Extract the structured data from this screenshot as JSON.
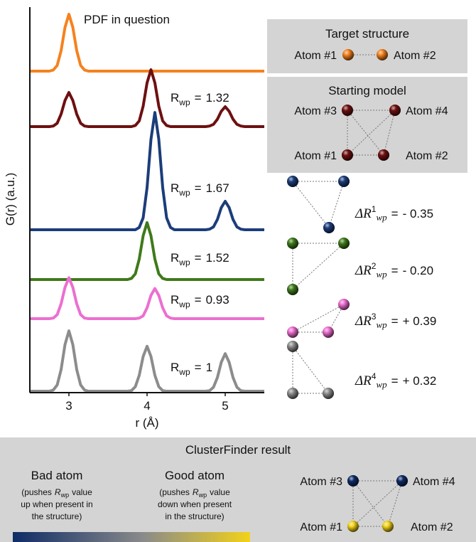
{
  "chart_data": {
    "type": "line",
    "x_label": "r (Å)",
    "y_label": "G(r) (a.u.)",
    "xlim": [
      2.5,
      5.5
    ],
    "xticks": [
      3,
      4,
      5
    ],
    "x": [
      2.5,
      2.55,
      2.6,
      2.65,
      2.7,
      2.75,
      2.8,
      2.85,
      2.9,
      2.95,
      3,
      3.05,
      3.1,
      3.15,
      3.2,
      3.25,
      3.3,
      3.35,
      3.4,
      3.45,
      3.5,
      3.55,
      3.6,
      3.65,
      3.7,
      3.75,
      3.8,
      3.85,
      3.9,
      3.95,
      4,
      4.05,
      4.1,
      4.15,
      4.2,
      4.25,
      4.3,
      4.35,
      4.4,
      4.45,
      4.5,
      4.55,
      4.6,
      4.65,
      4.7,
      4.75,
      4.8,
      4.85,
      4.9,
      4.95,
      5,
      5.05,
      5.1,
      5.15,
      5.2,
      5.25,
      5.3,
      5.35,
      5.4,
      5.45,
      5.5
    ],
    "rwp_label": {
      "symbol": "R",
      "subscript": "wp",
      "equals": "="
    },
    "series": [
      {
        "name": "PDF in question",
        "color": "#f5821f",
        "values": [
          0,
          0,
          0,
          0,
          0,
          0,
          0.02,
          0.1,
          0.36,
          0.77,
          1,
          0.77,
          0.36,
          0.1,
          0.02,
          0,
          0,
          0,
          0,
          0,
          0,
          0,
          0,
          0,
          0,
          0,
          0,
          0,
          0,
          0,
          0,
          0,
          0,
          0,
          0,
          0,
          0,
          0,
          0,
          0,
          0,
          0,
          0,
          0,
          0,
          0,
          0,
          0,
          0,
          0,
          0,
          0,
          0,
          0,
          0,
          0,
          0,
          0,
          0,
          0,
          0
        ]
      },
      {
        "color": "#6e1010",
        "rwp": 1.32,
        "values": [
          0,
          0,
          0,
          0,
          0,
          0,
          0.01,
          0.06,
          0.22,
          0.46,
          0.6,
          0.46,
          0.22,
          0.06,
          0.01,
          0,
          0,
          0,
          0,
          0,
          0,
          0,
          0,
          0,
          0,
          0,
          0,
          0.02,
          0.1,
          0.36,
          0.77,
          1,
          0.77,
          0.36,
          0.1,
          0.02,
          0,
          0,
          0,
          0,
          0,
          0,
          0,
          0,
          0,
          0,
          0.01,
          0.04,
          0.13,
          0.27,
          0.35,
          0.27,
          0.13,
          0.04,
          0.01,
          0,
          0,
          0,
          0,
          0,
          0
        ]
      },
      {
        "color": "#1c3d7a",
        "rwp": 1.67,
        "values": [
          0,
          0,
          0,
          0,
          0,
          0,
          0,
          0,
          0,
          0,
          0,
          0,
          0,
          0,
          0,
          0,
          0,
          0,
          0,
          0,
          0,
          0,
          0,
          0,
          0,
          0,
          0,
          0,
          0.04,
          0.21,
          0.74,
          1.59,
          2.06,
          1.59,
          0.74,
          0.21,
          0.04,
          0,
          0,
          0,
          0,
          0,
          0,
          0,
          0,
          0,
          0.01,
          0.05,
          0.18,
          0.39,
          0.5,
          0.39,
          0.18,
          0.05,
          0.01,
          0,
          0,
          0,
          0,
          0,
          0
        ]
      },
      {
        "color": "#3f7a1a",
        "rwp": 1.52,
        "values": [
          0,
          0,
          0,
          0,
          0,
          0,
          0,
          0,
          0,
          0,
          0,
          0,
          0,
          0,
          0,
          0,
          0,
          0,
          0,
          0,
          0,
          0,
          0,
          0,
          0,
          0,
          0.02,
          0.1,
          0.36,
          0.77,
          1,
          0.77,
          0.36,
          0.1,
          0.02,
          0,
          0,
          0,
          0,
          0,
          0,
          0,
          0,
          0,
          0,
          0,
          0,
          0,
          0,
          0,
          0,
          0,
          0,
          0,
          0,
          0,
          0,
          0,
          0,
          0,
          0
        ]
      },
      {
        "color": "#ec6fd0",
        "rwp": 0.93,
        "values": [
          0,
          0,
          0,
          0,
          0,
          0,
          0.01,
          0.07,
          0.26,
          0.55,
          0.72,
          0.55,
          0.26,
          0.07,
          0.01,
          0,
          0,
          0,
          0,
          0,
          0,
          0,
          0,
          0,
          0,
          0,
          0,
          0,
          0.01,
          0.05,
          0.19,
          0.41,
          0.53,
          0.41,
          0.19,
          0.05,
          0.01,
          0,
          0,
          0,
          0,
          0,
          0,
          0,
          0,
          0,
          0,
          0,
          0,
          0,
          0,
          0,
          0,
          0,
          0,
          0,
          0,
          0,
          0,
          0,
          0
        ]
      },
      {
        "color": "#8c8c8c",
        "rwp": 1.0,
        "values": [
          0,
          0,
          0,
          0,
          0,
          0,
          0.02,
          0.11,
          0.38,
          0.82,
          1.06,
          0.82,
          0.38,
          0.11,
          0.02,
          0,
          0,
          0,
          0,
          0,
          0,
          0,
          0,
          0,
          0,
          0,
          0.01,
          0.08,
          0.28,
          0.61,
          0.79,
          0.61,
          0.28,
          0.08,
          0.01,
          0,
          0,
          0,
          0,
          0,
          0,
          0,
          0,
          0,
          0,
          0,
          0.01,
          0.07,
          0.24,
          0.51,
          0.66,
          0.51,
          0.24,
          0.07,
          0.01,
          0,
          0,
          0,
          0,
          0,
          0
        ]
      }
    ]
  },
  "target": {
    "title": "Target structure",
    "atoms": [
      "Atom #1",
      "Atom #2"
    ]
  },
  "start": {
    "title": "Starting model",
    "atoms": [
      "Atom #3",
      "Atom #4",
      "Atom #1",
      "Atom #2"
    ]
  },
  "deltas": {
    "symbol": "ΔR",
    "subscript": "wp",
    "equals": "=",
    "items": [
      {
        "superscript": "1",
        "value": -0.35,
        "value_label": "- 0.35"
      },
      {
        "superscript": "2",
        "value": -0.2,
        "value_label": "- 0.20"
      },
      {
        "superscript": "3",
        "value": 0.39,
        "value_label": "+ 0.39"
      },
      {
        "superscript": "4",
        "value": 0.32,
        "value_label": "+ 0.32"
      }
    ]
  },
  "result": {
    "title": "ClusterFinder result",
    "bad": {
      "title": "Bad atom",
      "color": "#0f2c66",
      "lead": "(pushes",
      "tail": "value",
      "lines": [
        "up when present in",
        "the structure)"
      ]
    },
    "good": {
      "title": "Good atom",
      "color": "#f2d21a",
      "lead": "(pushes",
      "tail": "value",
      "lines": [
        "down when present",
        "in the structure)"
      ]
    },
    "atoms": [
      "Atom #3",
      "Atom #4",
      "Atom #1",
      "Atom #2"
    ]
  }
}
